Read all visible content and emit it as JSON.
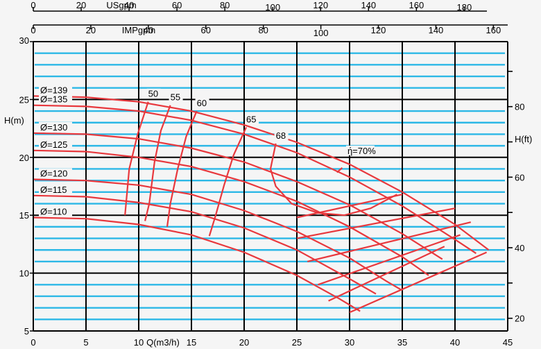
{
  "chart_data": {
    "type": "line",
    "xlabel": "Q(m3/h)",
    "ylabel_left": "H(m)",
    "ylabel_right": "H(ft)",
    "top_axis1_label": "USgpm",
    "top_axis2_label": "IMPgpm",
    "xlim": [
      0,
      45
    ],
    "ylim": [
      5,
      30
    ],
    "x_ticks": [
      0,
      5,
      10,
      15,
      20,
      25,
      30,
      35,
      40,
      45
    ],
    "y_ticks": [
      5,
      10,
      15,
      20,
      25,
      30
    ],
    "usgpm_ticks": [
      0,
      20,
      40,
      60,
      80,
      100,
      120,
      140,
      160,
      180
    ],
    "impgpm_ticks": [
      0,
      20,
      40,
      60,
      80,
      100,
      120,
      140,
      160
    ],
    "hft_ticks": [
      20,
      40,
      60,
      80
    ],
    "colors": {
      "curve": "#e8383d",
      "grid_blue": "#2cb8e6",
      "grid_black": "#000000",
      "background": "#f5f5f5"
    },
    "impellers": [
      {
        "label": "Ø=139",
        "points": [
          [
            0,
            25.3
          ],
          [
            5,
            25.2
          ],
          [
            10,
            24.8
          ],
          [
            15,
            24.0
          ],
          [
            20,
            22.8
          ],
          [
            25,
            21.3
          ],
          [
            30,
            19.4
          ],
          [
            35,
            17.0
          ],
          [
            40,
            14.2
          ],
          [
            43.2,
            12.0
          ]
        ]
      },
      {
        "label": "Ø=135",
        "points": [
          [
            0,
            24.5
          ],
          [
            5,
            24.4
          ],
          [
            10,
            24.0
          ],
          [
            15,
            23.2
          ],
          [
            20,
            22.0
          ],
          [
            25,
            20.4
          ],
          [
            30,
            18.3
          ],
          [
            35,
            15.8
          ],
          [
            40,
            12.9
          ],
          [
            42,
            11.7
          ]
        ]
      },
      {
        "label": "Ø=130",
        "points": [
          [
            0,
            22.1
          ],
          [
            5,
            22.0
          ],
          [
            10,
            21.6
          ],
          [
            15,
            20.8
          ],
          [
            20,
            19.6
          ],
          [
            25,
            17.9
          ],
          [
            30,
            15.9
          ],
          [
            35,
            13.4
          ],
          [
            38.8,
            11.2
          ]
        ]
      },
      {
        "label": "Ø=125",
        "points": [
          [
            0,
            20.6
          ],
          [
            5,
            20.5
          ],
          [
            10,
            20.0
          ],
          [
            15,
            19.2
          ],
          [
            20,
            17.9
          ],
          [
            25,
            16.2
          ],
          [
            30,
            14.0
          ],
          [
            35,
            11.4
          ],
          [
            37.5,
            9.8
          ]
        ]
      },
      {
        "label": "Ø=120",
        "points": [
          [
            0,
            18.1
          ],
          [
            5,
            18.0
          ],
          [
            10,
            17.6
          ],
          [
            15,
            16.8
          ],
          [
            20,
            15.4
          ],
          [
            25,
            13.6
          ],
          [
            30,
            11.3
          ],
          [
            33.5,
            9.3
          ],
          [
            35,
            8.5
          ]
        ]
      },
      {
        "label": "Ø=115",
        "points": [
          [
            0,
            16.7
          ],
          [
            5,
            16.6
          ],
          [
            10,
            16.1
          ],
          [
            15,
            15.3
          ],
          [
            20,
            13.9
          ],
          [
            25,
            12.0
          ],
          [
            30,
            9.5
          ],
          [
            32.5,
            8.2
          ]
        ]
      },
      {
        "label": "Ø=110",
        "points": [
          [
            0,
            14.8
          ],
          [
            5,
            14.7
          ],
          [
            10,
            14.2
          ],
          [
            15,
            13.3
          ],
          [
            20,
            11.8
          ],
          [
            25,
            9.8
          ],
          [
            29,
            7.8
          ],
          [
            31,
            6.7
          ]
        ]
      }
    ],
    "efficiency_curves": [
      {
        "label": "50",
        "points": [
          [
            10.9,
            24.8
          ],
          [
            9.9,
            22.0
          ],
          [
            9.1,
            19.0
          ],
          [
            8.7,
            15.0
          ]
        ]
      },
      {
        "label": "55",
        "points": [
          [
            13.0,
            24.5
          ],
          [
            12.1,
            22.3
          ],
          [
            11.5,
            19.6
          ],
          [
            11.0,
            16.0
          ],
          [
            10.6,
            14.5
          ]
        ]
      },
      {
        "label": "60",
        "points": [
          [
            15.5,
            24.0
          ],
          [
            14.5,
            21.8
          ],
          [
            13.7,
            19.0
          ],
          [
            13.0,
            16.0
          ],
          [
            12.7,
            14.0
          ]
        ]
      },
      {
        "label": "65",
        "points": [
          [
            20.2,
            22.6
          ],
          [
            19.0,
            20.2
          ],
          [
            18.1,
            17.6
          ],
          [
            17.3,
            15.0
          ],
          [
            16.7,
            13.2
          ]
        ]
      },
      {
        "label": "68",
        "points": [
          [
            23.0,
            21.2
          ],
          [
            22.5,
            19.0
          ],
          [
            23.0,
            17.5
          ],
          [
            24.5,
            16.0
          ],
          [
            27.0,
            15.2
          ],
          [
            29.5,
            15.0
          ],
          [
            32.0,
            15.6
          ],
          [
            34.5,
            16.8
          ]
        ]
      },
      {
        "label": "ή=70%",
        "points": [
          [
            29.3,
            19.1
          ],
          [
            28.8,
            18.7
          ]
        ]
      }
    ],
    "power_lines": [
      {
        "points": [
          [
            25,
            14.8
          ],
          [
            35,
            16.8
          ]
        ]
      },
      {
        "points": [
          [
            25,
            13.0
          ],
          [
            40,
            15.6
          ]
        ]
      },
      {
        "points": [
          [
            26,
            11.0
          ],
          [
            41.5,
            14.4
          ]
        ]
      },
      {
        "points": [
          [
            27,
            9.0
          ],
          [
            40.5,
            13.3
          ]
        ]
      },
      {
        "points": [
          [
            28,
            7.6
          ],
          [
            39,
            12.3
          ]
        ]
      },
      {
        "points": [
          [
            30,
            6.6
          ],
          [
            43,
            11.8
          ]
        ]
      }
    ]
  }
}
